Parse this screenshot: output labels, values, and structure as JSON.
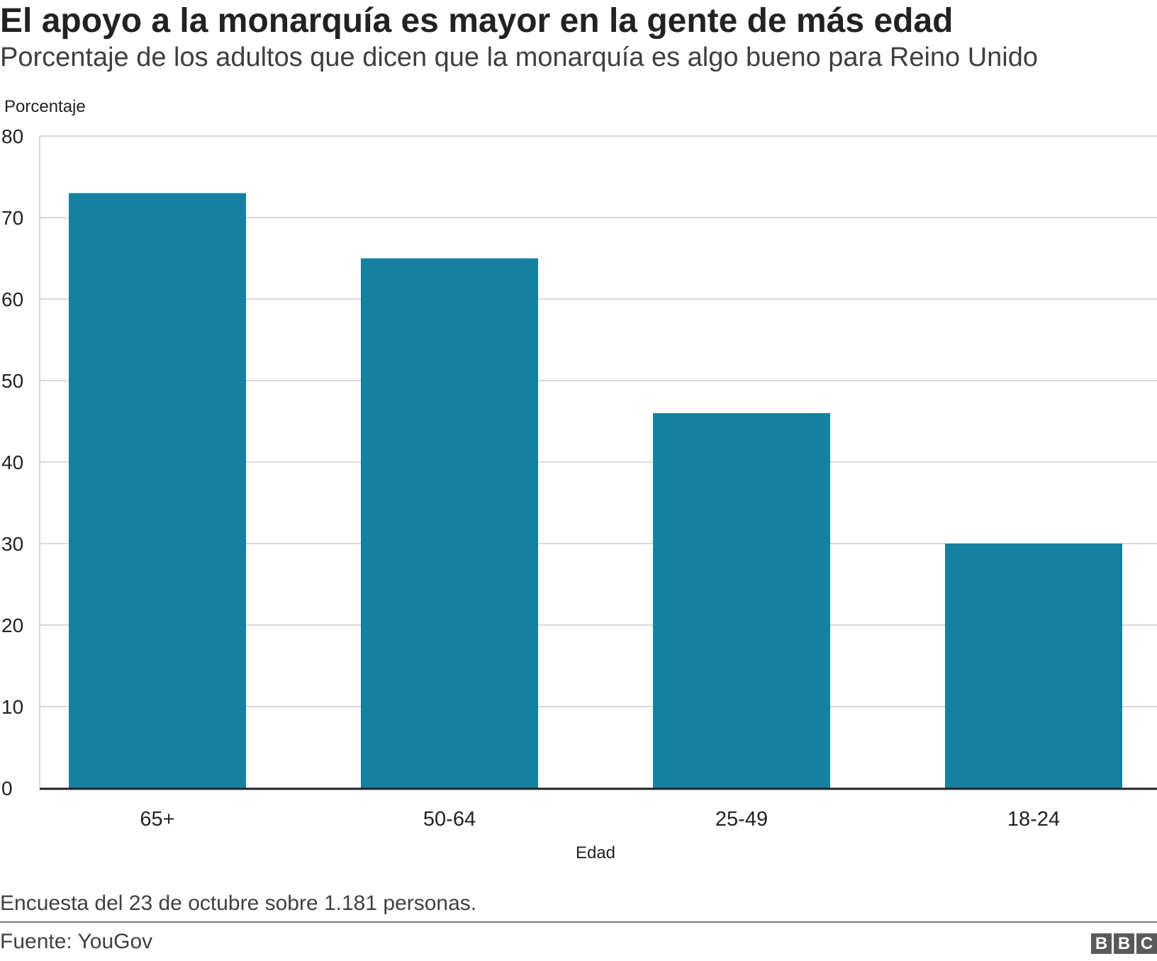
{
  "header": {
    "title": "El apoyo a la monarquía es mayor en la gente de más edad",
    "subtitle": "Porcentaje de los adultos que dicen que la monarquía es algo bueno para Reino Unido"
  },
  "chart_data": {
    "type": "bar",
    "title": "El apoyo a la monarquía es mayor en la gente de más edad",
    "subtitle": "Porcentaje de los adultos que dicen que la monarquía es algo bueno para Reino Unido",
    "xlabel": "Edad",
    "ylabel": "Porcentaje",
    "categories": [
      "65+",
      "50-64",
      "25-49",
      "18-24"
    ],
    "values": [
      73,
      65,
      46,
      30
    ],
    "ylim": [
      0,
      80
    ],
    "yticks": [
      0,
      10,
      20,
      30,
      40,
      50,
      60,
      70,
      80
    ],
    "grid": true,
    "legend": "none",
    "colors": {
      "bar": "#1780a1",
      "grid": "#cccccc",
      "axis": "#222222"
    }
  },
  "footer": {
    "note": "Encuesta del 23 de octubre sobre 1.181 personas.",
    "source": "Fuente: YouGov",
    "logo_letters": [
      "B",
      "B",
      "C"
    ]
  }
}
